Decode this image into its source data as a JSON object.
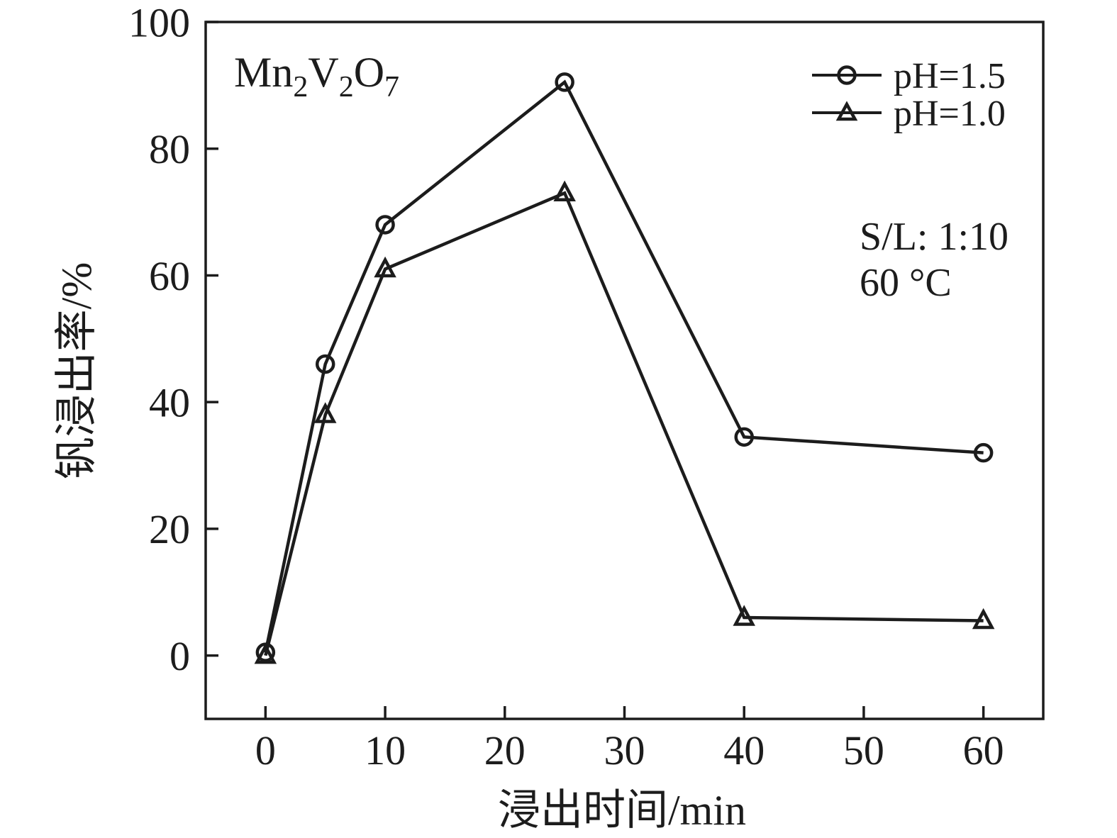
{
  "figure": {
    "background": "#ffffff",
    "ink_color": "#1c1c1c"
  },
  "chart_data": {
    "type": "line",
    "title": "Mn2V2O7",
    "title_parts": [
      [
        "Mn",
        false
      ],
      [
        "2",
        true
      ],
      [
        "V",
        false
      ],
      [
        "2",
        true
      ],
      [
        "O",
        false
      ],
      [
        "7",
        true
      ]
    ],
    "xlabel": "浸出时间/min",
    "ylabel": "钒浸出率/%",
    "xlim": [
      -5,
      65
    ],
    "ylim": [
      -10,
      100
    ],
    "xticks": [
      0,
      10,
      20,
      30,
      40,
      50,
      60
    ],
    "yticks": [
      0,
      20,
      40,
      60,
      80,
      100
    ],
    "grid": false,
    "legend_position": "top-right-inside",
    "x": [
      0,
      5,
      10,
      25,
      40,
      60
    ],
    "series": [
      {
        "name": "pH=1.5",
        "marker": "circle",
        "values": [
          0.5,
          46,
          68,
          90.5,
          34.5,
          32
        ]
      },
      {
        "name": "pH=1.0",
        "marker": "triangle",
        "values": [
          0,
          38,
          61,
          73,
          6,
          5.5
        ]
      }
    ],
    "annotations": [
      "S/L: 1:10",
      "60 °C"
    ]
  }
}
